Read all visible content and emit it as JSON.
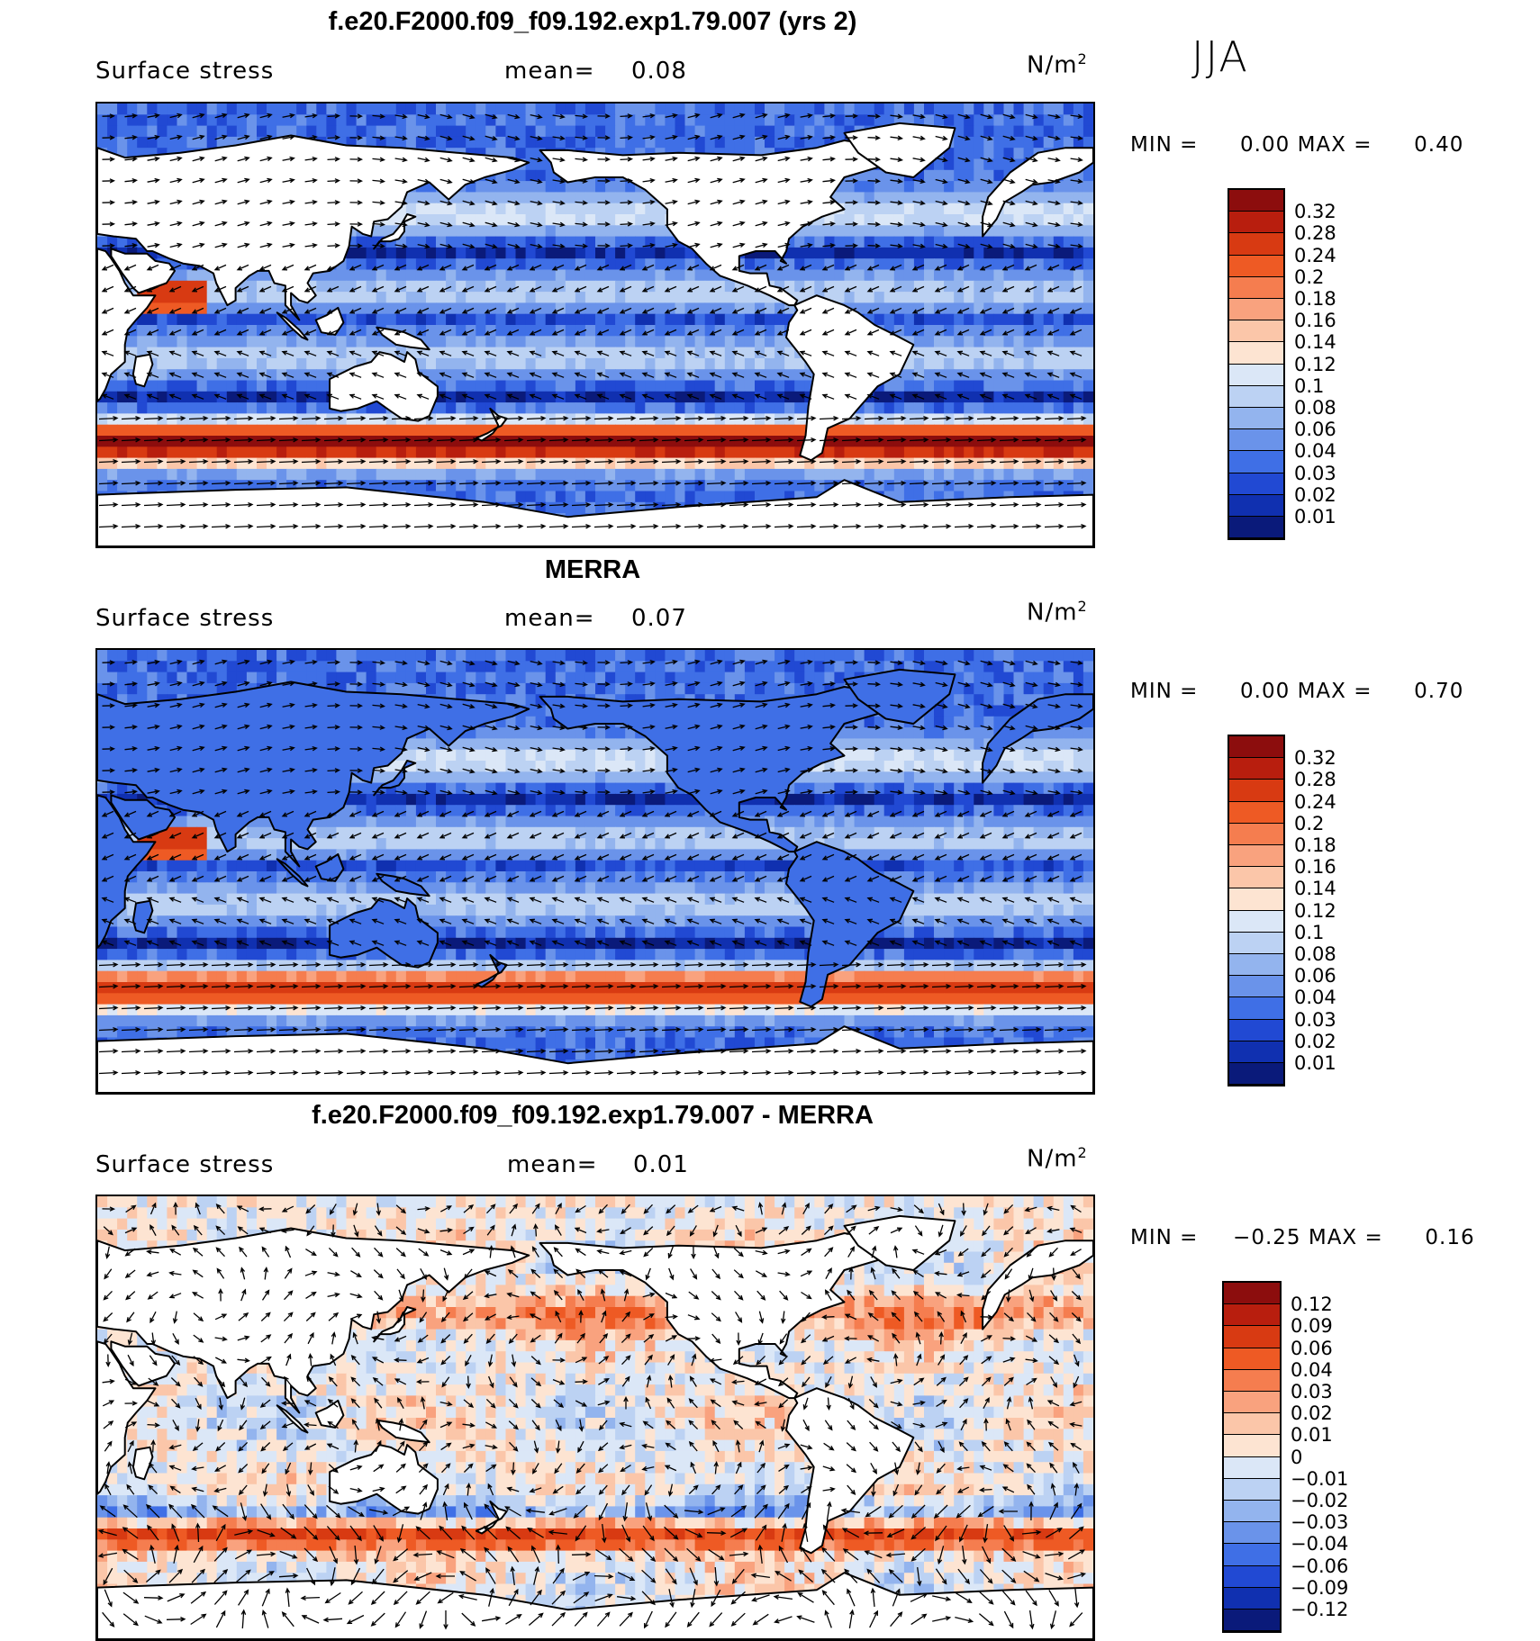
{
  "season": "JJA",
  "panels": [
    {
      "title": "f.e20.F2000.f09_f09.192.exp1.79.007 (yrs 2)",
      "variable": "Surface stress",
      "mean_label": "mean=",
      "mean_value": "0.08",
      "unit_base": "N/m",
      "unit_exp": "2",
      "min_label": "MIN =",
      "min_value": "0.00",
      "max_label": "MAX =",
      "max_value": "0.40",
      "field": "model",
      "colorbar": {
        "labels": [
          "0.32",
          "0.28",
          "0.24",
          "0.2",
          "0.18",
          "0.16",
          "0.14",
          "0.12",
          "0.1",
          "0.08",
          "0.06",
          "0.04",
          "0.03",
          "0.02",
          "0.01"
        ],
        "colors": [
          "#8c0d0d",
          "#b81e0e",
          "#d83a12",
          "#ee5a24",
          "#f57d4f",
          "#f9a27e",
          "#fbc6a9",
          "#fde4d2",
          "#dbe7f7",
          "#bcd2f3",
          "#93b4ee",
          "#6a93ea",
          "#3f6fe6",
          "#2149d3",
          "#1030b0",
          "#0a1a7a"
        ]
      }
    },
    {
      "title": "MERRA",
      "variable": "Surface stress",
      "mean_label": "mean=",
      "mean_value": "0.07",
      "unit_base": "N/m",
      "unit_exp": "2",
      "min_label": "MIN =",
      "min_value": "0.00",
      "max_label": "MAX =",
      "max_value": "0.70",
      "field": "obs",
      "colorbar": {
        "labels": [
          "0.32",
          "0.28",
          "0.24",
          "0.2",
          "0.18",
          "0.16",
          "0.14",
          "0.12",
          "0.1",
          "0.08",
          "0.06",
          "0.04",
          "0.03",
          "0.02",
          "0.01"
        ],
        "colors": [
          "#8c0d0d",
          "#b81e0e",
          "#d83a12",
          "#ee5a24",
          "#f57d4f",
          "#f9a27e",
          "#fbc6a9",
          "#fde4d2",
          "#dbe7f7",
          "#bcd2f3",
          "#93b4ee",
          "#6a93ea",
          "#3f6fe6",
          "#2149d3",
          "#1030b0",
          "#0a1a7a"
        ]
      }
    },
    {
      "title": "f.e20.F2000.f09_f09.192.exp1.79.007 - MERRA",
      "variable": "Surface stress",
      "mean_label": "mean=",
      "mean_value": "0.01",
      "unit_base": "N/m",
      "unit_exp": "2",
      "min_label": "MIN =",
      "min_value": "−0.25",
      "max_label": "MAX =",
      "max_value": "0.16",
      "field": "diff",
      "colorbar": {
        "labels": [
          "0.12",
          "0.09",
          "0.06",
          "0.04",
          "0.03",
          "0.02",
          "0.01",
          "0",
          "−0.01",
          "−0.02",
          "−0.03",
          "−0.04",
          "−0.06",
          "−0.09",
          "−0.12"
        ],
        "colors": [
          "#8c0d0d",
          "#b81e0e",
          "#d83a12",
          "#ee5a24",
          "#f57d4f",
          "#f9a27e",
          "#fbc6a9",
          "#fde4d2",
          "#dbe7f7",
          "#bcd2f3",
          "#93b4ee",
          "#6a93ea",
          "#3f6fe6",
          "#2149d3",
          "#1030b0",
          "#0a1a7a"
        ]
      }
    }
  ]
}
